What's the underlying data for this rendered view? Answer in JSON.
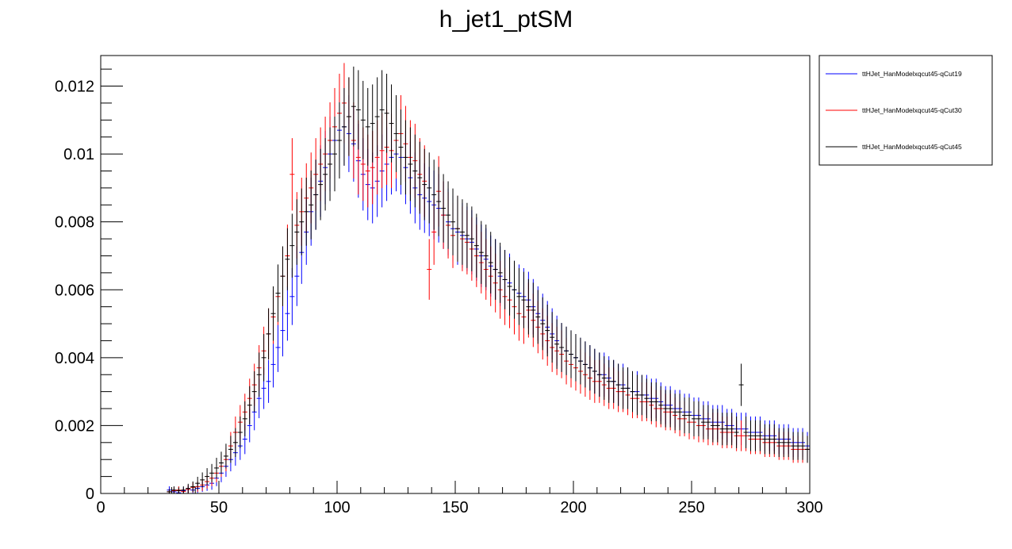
{
  "chart_data": {
    "type": "scatter",
    "title": "h_jet1_ptSM",
    "xlabel": "",
    "ylabel": "",
    "xlim": [
      0,
      300
    ],
    "ylim": [
      0,
      0.0129
    ],
    "x_ticks": [
      0,
      50,
      100,
      150,
      200,
      250,
      300
    ],
    "x_tick_labels": [
      "0",
      "50",
      "100",
      "150",
      "200",
      "250",
      "300"
    ],
    "y_ticks": [
      0,
      0.002,
      0.004,
      0.006,
      0.008,
      0.01,
      0.012
    ],
    "y_tick_labels": [
      "0",
      "0.002",
      "0.004",
      "0.006",
      "0.008",
      "0.01",
      "0.012"
    ],
    "bin_width": 2,
    "grid": false,
    "legend_position": "top-right outside",
    "series": [
      {
        "name": "ttHJet_HanModelxqcut45-qCut19",
        "color": "#0000ff",
        "x": [
          29,
          31,
          33,
          35,
          37,
          39,
          41,
          43,
          45,
          47,
          49,
          51,
          53,
          55,
          57,
          59,
          61,
          63,
          65,
          67,
          69,
          71,
          73,
          75,
          77,
          79,
          81,
          83,
          85,
          87,
          89,
          91,
          93,
          95,
          97,
          99,
          101,
          103,
          105,
          107,
          109,
          111,
          113,
          115,
          117,
          119,
          121,
          123,
          125,
          127,
          129,
          131,
          133,
          135,
          137,
          139,
          141,
          143,
          145,
          147,
          149,
          151,
          153,
          155,
          157,
          159,
          161,
          163,
          165,
          167,
          169,
          171,
          173,
          175,
          177,
          179,
          181,
          183,
          185,
          187,
          189,
          191,
          193,
          195,
          197,
          199,
          201,
          203,
          205,
          207,
          209,
          211,
          213,
          215,
          217,
          219,
          221,
          223,
          225,
          227,
          229,
          231,
          233,
          235,
          237,
          239,
          241,
          243,
          245,
          247,
          249,
          251,
          253,
          255,
          257,
          259,
          261,
          263,
          265,
          267,
          269,
          271,
          273,
          275,
          277,
          279,
          281,
          283,
          285,
          287,
          289,
          291,
          293,
          295,
          297,
          299
        ],
        "y": [
          0.0001,
          5e-05,
          2e-05,
          8e-05,
          0.00012,
          0.0001,
          0.00015,
          0.0002,
          0.00025,
          0.0003,
          0.00045,
          0.0006,
          0.0008,
          0.001,
          0.0012,
          0.0014,
          0.0016,
          0.002,
          0.0024,
          0.0028,
          0.0031,
          0.0033,
          0.0038,
          0.0043,
          0.0048,
          0.0053,
          0.0058,
          0.0064,
          0.0071,
          0.0077,
          0.0083,
          0.0088,
          0.0092,
          0.0096,
          0.01,
          0.0104,
          0.0107,
          0.0108,
          0.0106,
          0.0103,
          0.0098,
          0.0094,
          0.0091,
          0.009,
          0.0092,
          0.0095,
          0.0097,
          0.0099,
          0.01,
          0.0099,
          0.0096,
          0.0093,
          0.009,
          0.0088,
          0.0087,
          0.0086,
          0.0085,
          0.0084,
          0.0082,
          0.008,
          0.0078,
          0.0077,
          0.0076,
          0.0075,
          0.0074,
          0.0072,
          0.007,
          0.0069,
          0.0067,
          0.0066,
          0.0064,
          0.0063,
          0.0062,
          0.006,
          0.0059,
          0.0058,
          0.0057,
          0.0055,
          0.0053,
          0.0051,
          0.0049,
          0.0047,
          0.0045,
          0.0043,
          0.0042,
          0.0041,
          0.004,
          0.0039,
          0.0038,
          0.0037,
          0.0036,
          0.0035,
          0.0035,
          0.0034,
          0.0033,
          0.0032,
          0.0032,
          0.0031,
          0.003,
          0.003,
          0.0029,
          0.0029,
          0.0028,
          0.0028,
          0.0027,
          0.0026,
          0.0026,
          0.0025,
          0.0025,
          0.0024,
          0.0024,
          0.0023,
          0.0023,
          0.0022,
          0.0022,
          0.0021,
          0.0021,
          0.0021,
          0.002,
          0.002,
          0.0019,
          0.0019,
          0.0019,
          0.0018,
          0.0018,
          0.0018,
          0.0017,
          0.0017,
          0.0017,
          0.0016,
          0.0016,
          0.0016,
          0.0015,
          0.0015,
          0.0015,
          0.0014
        ]
      },
      {
        "name": "ttHJet_HanModelxqcut45-qCut30",
        "color": "#ff0000",
        "x": [
          29,
          31,
          33,
          35,
          37,
          39,
          41,
          43,
          45,
          47,
          49,
          51,
          53,
          55,
          57,
          59,
          61,
          63,
          65,
          67,
          69,
          71,
          73,
          75,
          77,
          79,
          81,
          83,
          85,
          87,
          89,
          91,
          93,
          95,
          97,
          99,
          101,
          103,
          105,
          107,
          109,
          111,
          113,
          115,
          117,
          119,
          121,
          123,
          125,
          127,
          129,
          131,
          133,
          135,
          137,
          139,
          141,
          143,
          145,
          147,
          149,
          151,
          153,
          155,
          157,
          159,
          161,
          163,
          165,
          167,
          169,
          171,
          173,
          175,
          177,
          179,
          181,
          183,
          185,
          187,
          189,
          191,
          193,
          195,
          197,
          199,
          201,
          203,
          205,
          207,
          209,
          211,
          213,
          215,
          217,
          219,
          221,
          223,
          225,
          227,
          229,
          231,
          233,
          235,
          237,
          239,
          241,
          243,
          245,
          247,
          249,
          251,
          253,
          255,
          257,
          259,
          261,
          263,
          265,
          267,
          269,
          271,
          273,
          275,
          277,
          279,
          281,
          283,
          285,
          287,
          289,
          291,
          293,
          295,
          297,
          299
        ],
        "y": [
          5e-05,
          8e-05,
          0.0001,
          6e-05,
          0.00012,
          0.00018,
          0.0002,
          0.00025,
          0.00035,
          0.00045,
          0.0006,
          0.0008,
          0.001,
          0.0014,
          0.0018,
          0.0021,
          0.0024,
          0.0028,
          0.0032,
          0.0037,
          0.0042,
          0.0047,
          0.0052,
          0.0058,
          0.0064,
          0.007,
          0.0094,
          0.0079,
          0.0083,
          0.0087,
          0.009,
          0.0094,
          0.0097,
          0.01,
          0.0104,
          0.0108,
          0.0112,
          0.0115,
          0.0111,
          0.0104,
          0.0099,
          0.0097,
          0.0095,
          0.0096,
          0.0099,
          0.0101,
          0.0102,
          0.0101,
          0.0104,
          0.0106,
          0.0103,
          0.0099,
          0.0098,
          0.0094,
          0.0092,
          0.0066,
          0.0077,
          0.0089,
          0.0082,
          0.0079,
          0.0076,
          0.0078,
          0.0075,
          0.0074,
          0.0072,
          0.007,
          0.0068,
          0.0066,
          0.0064,
          0.0062,
          0.006,
          0.0058,
          0.0057,
          0.0055,
          0.0053,
          0.0052,
          0.0054,
          0.0051,
          0.0049,
          0.0047,
          0.0045,
          0.0043,
          0.0042,
          0.0041,
          0.0039,
          0.0038,
          0.0037,
          0.0036,
          0.0035,
          0.0034,
          0.0033,
          0.0033,
          0.0032,
          0.0031,
          0.0031,
          0.003,
          0.003,
          0.0029,
          0.0028,
          0.0028,
          0.0027,
          0.0027,
          0.0026,
          0.0025,
          0.0025,
          0.0024,
          0.0024,
          0.0023,
          0.0022,
          0.0022,
          0.0021,
          0.0021,
          0.002,
          0.002,
          0.0019,
          0.0019,
          0.0019,
          0.0018,
          0.0018,
          0.0018,
          0.0017,
          0.0017,
          0.0017,
          0.0016,
          0.0016,
          0.0016,
          0.0015,
          0.0015,
          0.0015,
          0.0014,
          0.0014,
          0.0014,
          0.0013,
          0.0013,
          0.0013,
          0.0013
        ]
      },
      {
        "name": "ttHJet_HanModelxqcut45-qCut45",
        "color": "#000000",
        "x": [
          29,
          31,
          33,
          35,
          37,
          39,
          41,
          43,
          45,
          47,
          49,
          51,
          53,
          55,
          57,
          59,
          61,
          63,
          65,
          67,
          69,
          71,
          73,
          75,
          77,
          79,
          81,
          83,
          85,
          87,
          89,
          91,
          93,
          95,
          97,
          99,
          101,
          103,
          105,
          107,
          109,
          111,
          113,
          115,
          117,
          119,
          121,
          123,
          125,
          127,
          129,
          131,
          133,
          135,
          137,
          139,
          141,
          143,
          145,
          147,
          149,
          151,
          153,
          155,
          157,
          159,
          161,
          163,
          165,
          167,
          169,
          171,
          173,
          175,
          177,
          179,
          181,
          183,
          185,
          187,
          189,
          191,
          193,
          195,
          197,
          199,
          201,
          203,
          205,
          207,
          209,
          211,
          213,
          215,
          217,
          219,
          221,
          223,
          225,
          227,
          229,
          231,
          233,
          235,
          237,
          239,
          241,
          243,
          245,
          247,
          249,
          251,
          253,
          255,
          257,
          259,
          261,
          263,
          265,
          267,
          269,
          271,
          273,
          275,
          277,
          279,
          281,
          283,
          285,
          287,
          289,
          291,
          293,
          295,
          297,
          299
        ],
        "y": [
          5e-05,
          0.0001,
          8e-05,
          0.0001,
          0.00015,
          0.0002,
          0.0003,
          0.0004,
          0.0005,
          0.0006,
          0.00075,
          0.0009,
          0.0011,
          0.0013,
          0.0015,
          0.0018,
          0.0022,
          0.0026,
          0.003,
          0.0035,
          0.004,
          0.0047,
          0.0053,
          0.0059,
          0.0064,
          0.0069,
          0.0073,
          0.0077,
          0.008,
          0.0083,
          0.0085,
          0.0088,
          0.0091,
          0.0094,
          0.0097,
          0.01,
          0.0104,
          0.0108,
          0.0111,
          0.0114,
          0.0113,
          0.011,
          0.0108,
          0.0109,
          0.0111,
          0.0113,
          0.0112,
          0.0109,
          0.0106,
          0.0102,
          0.0099,
          0.0097,
          0.0095,
          0.0093,
          0.0091,
          0.009,
          0.0088,
          0.0086,
          0.0084,
          0.0082,
          0.008,
          0.0078,
          0.0077,
          0.0076,
          0.0075,
          0.0073,
          0.0071,
          0.007,
          0.0068,
          0.0066,
          0.0065,
          0.0063,
          0.0061,
          0.006,
          0.0058,
          0.0057,
          0.0055,
          0.0054,
          0.0052,
          0.005,
          0.0048,
          0.0046,
          0.0044,
          0.0043,
          0.0042,
          0.0041,
          0.004,
          0.0039,
          0.0038,
          0.0037,
          0.0036,
          0.0035,
          0.0034,
          0.0033,
          0.0033,
          0.0032,
          0.0031,
          0.0031,
          0.003,
          0.0029,
          0.0029,
          0.0028,
          0.0027,
          0.0027,
          0.0026,
          0.0025,
          0.0025,
          0.0024,
          0.0024,
          0.0023,
          0.0023,
          0.0022,
          0.0022,
          0.0021,
          0.0021,
          0.002,
          0.002,
          0.0019,
          0.0019,
          0.0019,
          0.0018,
          0.0032,
          0.0018,
          0.0017,
          0.0017,
          0.0017,
          0.0016,
          0.0016,
          0.0016,
          0.0015,
          0.0015,
          0.0015,
          0.0014,
          0.0014,
          0.0014,
          0.0013
        ]
      }
    ]
  }
}
